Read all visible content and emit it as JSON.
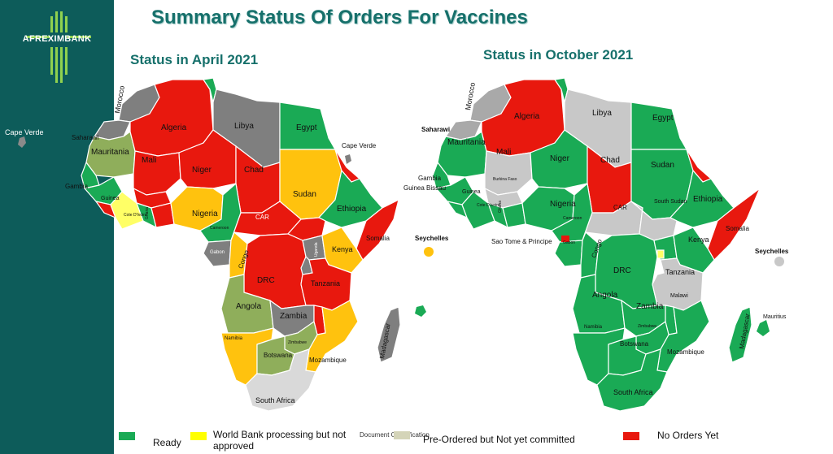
{
  "brand": {
    "name": "AFREXIMBANK"
  },
  "title": "Summary Status Of Orders For Vaccines",
  "maps": {
    "april": {
      "title": "Status in April 2021"
    },
    "october": {
      "title": "Status in October 2021"
    }
  },
  "colors": {
    "ready": "#1aaa55",
    "world_bank": "#ffc20e",
    "preordered": "#a9a9a9",
    "no_orders": "#e8180e",
    "mixed_april": "#8fae5b",
    "sidebar": "#0d5c5a"
  },
  "legend": [
    {
      "label": "Ready",
      "color": "#1aaa55"
    },
    {
      "label": "World Bank processing but not approved",
      "line1": "World Bank processing but not",
      "line2": "approved",
      "color": "#ffff00"
    },
    {
      "label": "Pre-Ordered but Not yet committed",
      "color": "#d4d4b8"
    },
    {
      "label": "No Orders Yet",
      "color": "#e8180e"
    }
  ],
  "doc_class": "Document Classification",
  "april_labels": {
    "cape_verde_left": "Cape Verde",
    "morocco": "Morocco",
    "saharawi": "Saharawi",
    "mauritania": "Mauritania",
    "algeria": "Algeria",
    "libya": "Libya",
    "egypt": "Egypt",
    "cape_verde_right": "Cape Verde",
    "mali": "Mali",
    "niger": "Niger",
    "chad": "Chad",
    "sudan": "Sudan",
    "gambia": "Gambia",
    "guinea": "Guinea",
    "cote": "Cote D'Ivoire",
    "ghana": "Ghana",
    "nigeria": "Nigeria",
    "car": "CAR",
    "ethiopia": "Ethiopia",
    "somalia": "Somalia",
    "cameroon": "Cameroon",
    "gabon": "Gabon",
    "congo": "Congo",
    "uganda": "Uganda",
    "kenya": "Kenya",
    "seychelles": "Seychelles",
    "drc": "DRC",
    "tanzania": "Tanzania",
    "angola": "Angola",
    "zambia": "Zambia",
    "namibia": "Namibia",
    "zimbabwe": "Zimbabwe",
    "botswana": "Botswana",
    "mozambique": "Mozambique",
    "madagascar": "Madagascar",
    "south_africa": "South Africa"
  },
  "october_labels": {
    "morocco": "Morocco",
    "algeria": "Algeria",
    "libya": "Libya",
    "egypt": "Egypt",
    "saharawi": "Saharawi",
    "mauritania": "Mauritania",
    "mali": "Mali",
    "niger": "Niger",
    "chad": "Chad",
    "sudan": "Sudan",
    "gambia": "Gambia",
    "guinea_bissau": "Guinea Bissau",
    "guinea": "Guinea",
    "burkina_faso": "Burkina Faso",
    "cote": "Cote D'Ivoire",
    "ghana": "Ghana",
    "nigeria": "Nigeria",
    "car": "CAR",
    "south_sudan": "South Sudan",
    "ethiopia": "Ethiopia",
    "somalia": "Somalia",
    "cameroon": "Cameroon",
    "sao_tome": "Sao Tome & Principe",
    "gabon": "Gabon",
    "congo": "Congo",
    "kenya": "Kenya",
    "seychelles": "Seychelles",
    "drc": "DRC",
    "tanzania": "Tanzania",
    "angola": "Angola",
    "zambia": "Zambia",
    "malawi": "Malawi",
    "namibia": "Namibia",
    "zimbabwe": "Zimbabwe",
    "botswana": "Botswana",
    "mozambique": "Mozambique",
    "madagascar": "Madagascar",
    "mauritius": "Mauritius",
    "south_africa": "South Africa"
  }
}
